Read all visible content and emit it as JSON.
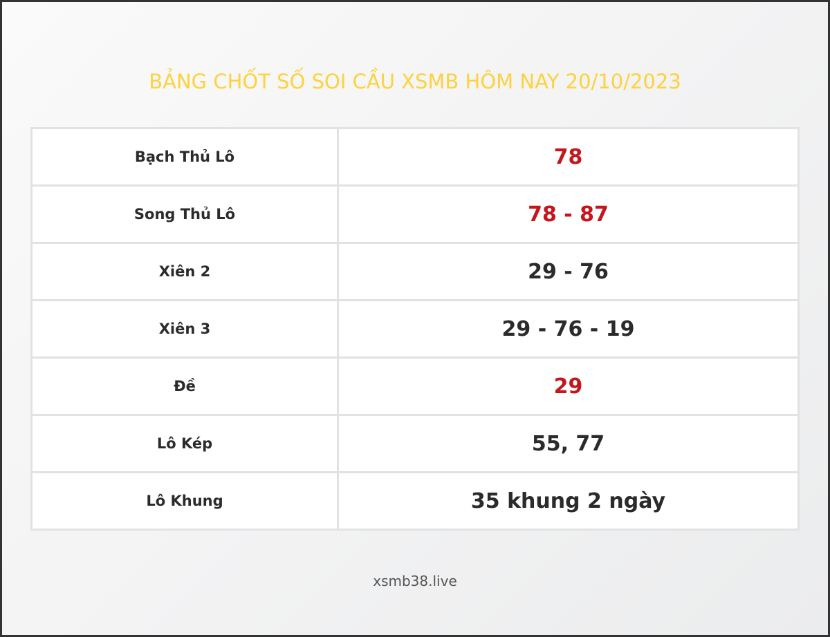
{
  "title": "BẢNG CHỐT SỐ SOI CẦU XSMB HÔM NAY 20/10/2023",
  "rows": [
    {
      "label": "Bạch Thủ Lô",
      "value": "78",
      "highlight": true
    },
    {
      "label": "Song Thủ Lô",
      "value": "78 - 87",
      "highlight": true
    },
    {
      "label": "Xiên 2",
      "value": "29 - 76",
      "highlight": false
    },
    {
      "label": "Xiên 3",
      "value": "29 - 76 - 19",
      "highlight": false
    },
    {
      "label": "Đề",
      "value": "29",
      "highlight": true
    },
    {
      "label": "Lô Kép",
      "value": "55, 77",
      "highlight": false
    },
    {
      "label": "Lô Khung",
      "value": "35 khung 2 ngày",
      "highlight": false
    }
  ],
  "footer": "xsmb38.live",
  "colors": {
    "title": "#fdd23c",
    "highlight": "#c4161c",
    "text": "#2b2b2b"
  }
}
